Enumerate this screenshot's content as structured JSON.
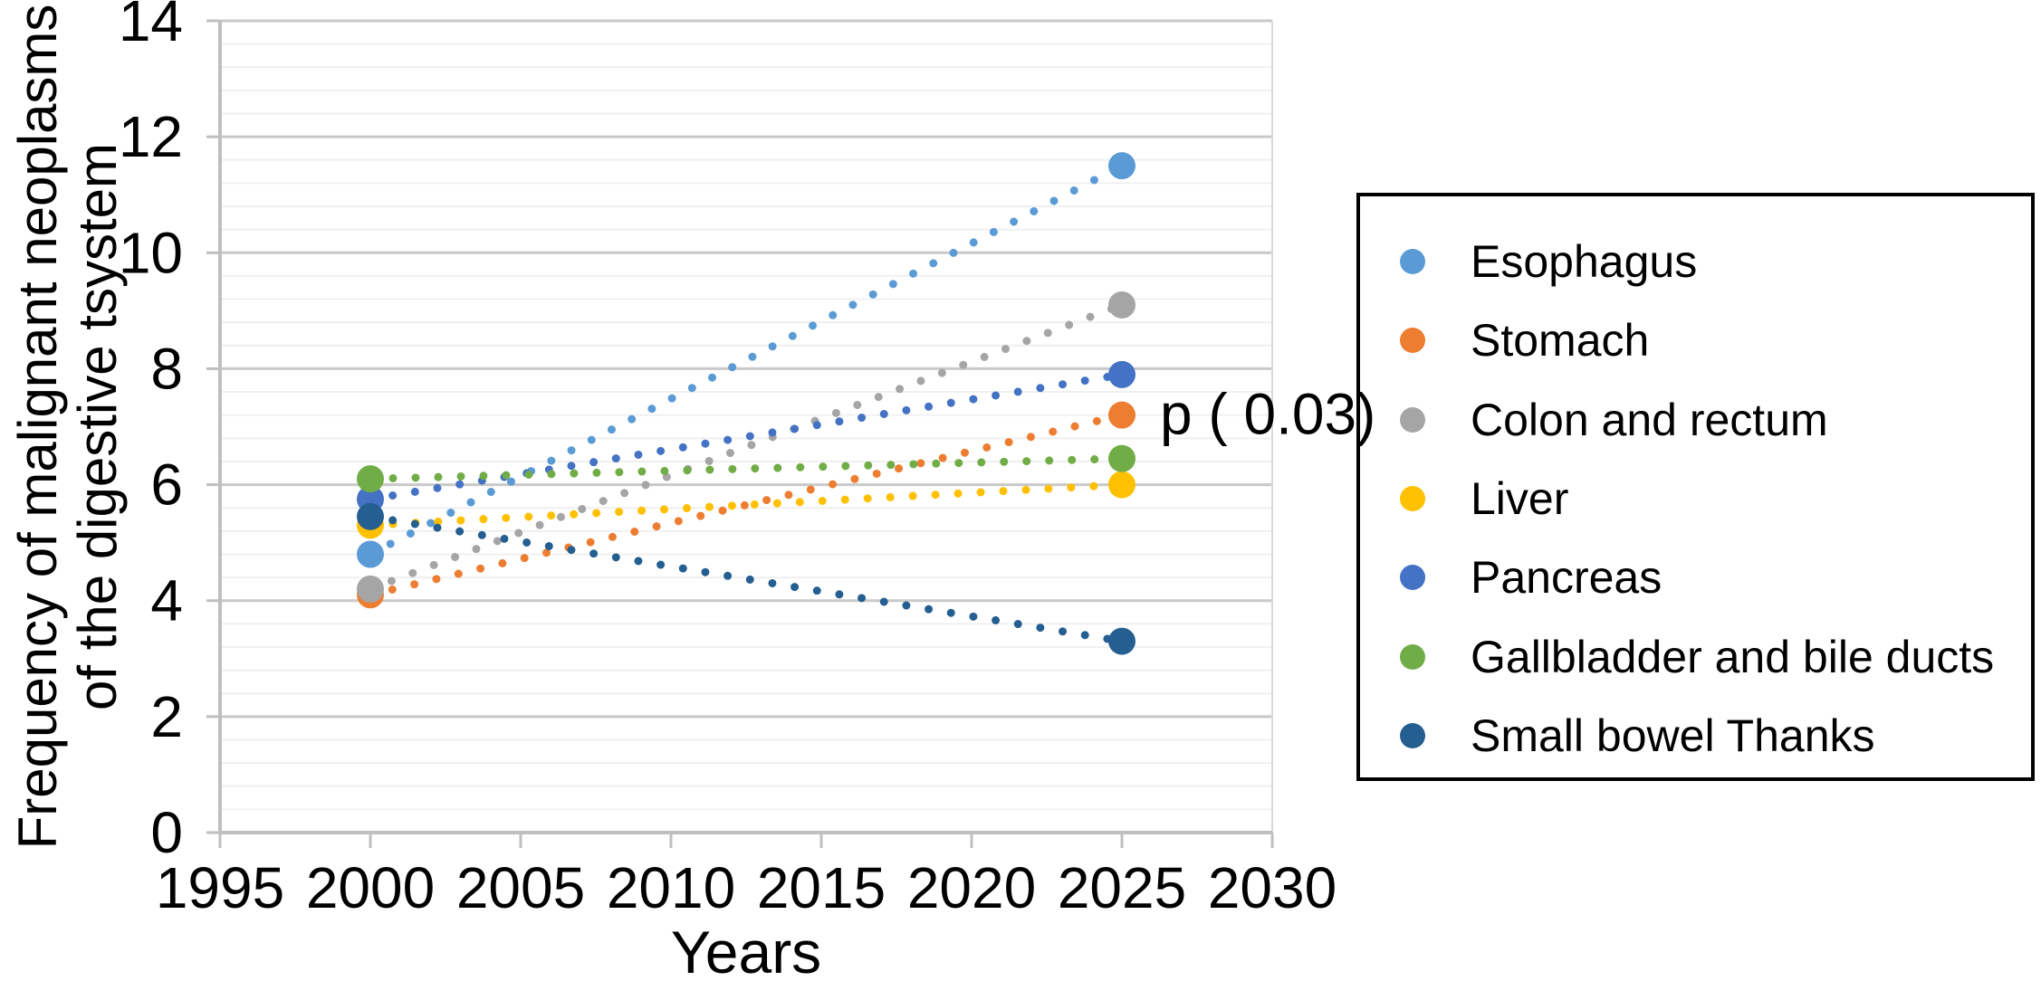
{
  "chart_data": {
    "type": "scatter",
    "title": "",
    "xlabel": "Years",
    "ylabel": "Frequency of malignant neoplasms of the digestive tsystem",
    "ylabel_lines": [
      "Frequency of malignant neoplasms",
      "of the digestive tsystem"
    ],
    "x": [
      2000,
      2025
    ],
    "series": [
      {
        "name": "Esophagus",
        "color": "#5B9BD5",
        "values": [
          4.8,
          11.5
        ]
      },
      {
        "name": "Stomach",
        "color": "#ED7D31",
        "values": [
          4.1,
          7.2
        ]
      },
      {
        "name": "Colon and rectum",
        "color": "#A5A5A5",
        "values": [
          4.2,
          9.1
        ]
      },
      {
        "name": "Liver",
        "color": "#FFC000",
        "values": [
          5.3,
          6.0
        ]
      },
      {
        "name": "Pancreas",
        "color": "#4472C4",
        "values": [
          5.75,
          7.9
        ]
      },
      {
        "name": "Gallbladder and bile ducts",
        "color": "#70AD47",
        "values": [
          6.1,
          6.45
        ]
      },
      {
        "name": "Small bowel Thanks",
        "color": "#255E91",
        "values": [
          5.45,
          3.3
        ]
      }
    ],
    "xlim": [
      1995,
      2030
    ],
    "ylim": [
      0,
      14
    ],
    "x_ticks": [
      1995,
      2000,
      2005,
      2010,
      2015,
      2020,
      2025,
      2030
    ],
    "y_ticks": [
      0,
      2,
      4,
      6,
      8,
      10,
      12,
      14
    ],
    "y_minor_step": 0.4,
    "grid": "horizontal major and minor, no vertical",
    "line_style": "dotted",
    "legend_position": "right boxed",
    "annotation": {
      "text": "p ( 0.03)",
      "series": "Stomach",
      "year": 2025
    }
  },
  "colors": {
    "axis_line": "#BFBFBF",
    "major_grid": "#C9C9C9",
    "minor_grid": "#F0F0F0",
    "plot_right_border": "#D9D9D9",
    "tick_text": "#000000",
    "legend_border": "#000000",
    "background": "#FFFFFF"
  }
}
